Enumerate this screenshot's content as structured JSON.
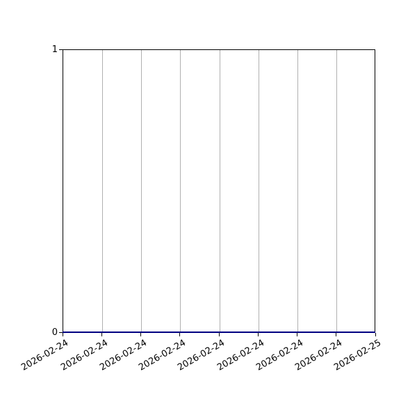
{
  "chart": {
    "title": "",
    "background_color": "#ffffff",
    "spine_color": "#000000",
    "grid_color": "#b0b0b0",
    "tick_label_color": "#000000",
    "y_ticks": [
      "0",
      "1"
    ],
    "x_tick_labels": [
      "2026-02-24",
      "2026-02-24",
      "2026-02-24",
      "2026-02-24",
      "2026-02-24",
      "2026-02-24",
      "2026-02-24",
      "2026-02-24",
      "2026-02-25"
    ]
  },
  "chart_data": {
    "type": "line",
    "title": "",
    "xlabel": "",
    "ylabel": "",
    "x": [
      "2026-02-24",
      "2026-02-24",
      "2026-02-24",
      "2026-02-24",
      "2026-02-24",
      "2026-02-24",
      "2026-02-24",
      "2026-02-24",
      "2026-02-25"
    ],
    "series": [
      {
        "name": "",
        "color": "#000080",
        "values": [
          0,
          0,
          0,
          0,
          0,
          0,
          0,
          0,
          0
        ]
      }
    ],
    "ylim": [
      0,
      1
    ],
    "y_tick_values": [
      0,
      1
    ],
    "grid": "vertical-only",
    "legend": "none",
    "x_tick_rotation_deg": 30
  }
}
